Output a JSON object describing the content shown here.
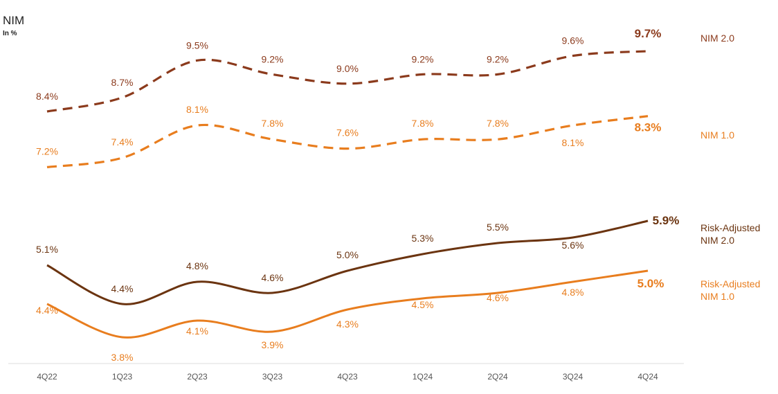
{
  "chart_data": {
    "type": "line",
    "title": "NIM",
    "subtitle": "In %",
    "categories": [
      "4Q22",
      "1Q23",
      "2Q23",
      "3Q23",
      "4Q23",
      "1Q24",
      "2Q24",
      "3Q24",
      "4Q24"
    ],
    "ylim": [
      3,
      10
    ],
    "grid": false,
    "legend_placement": "right",
    "series": [
      {
        "name": "NIM 2.0",
        "values": [
          8.4,
          8.7,
          9.5,
          9.2,
          9.0,
          9.2,
          9.2,
          9.6,
          9.7
        ],
        "color": "#8b3a1c",
        "style": "dashed"
      },
      {
        "name": "NIM 1.0",
        "values": [
          7.2,
          7.4,
          8.1,
          7.8,
          7.6,
          7.8,
          7.8,
          8.1,
          8.3
        ],
        "color": "#e87d1e",
        "style": "dashed"
      },
      {
        "name": "Risk-Adjusted NIM 2.0",
        "values": [
          5.1,
          4.4,
          4.8,
          4.6,
          5.0,
          5.3,
          5.5,
          5.6,
          5.9
        ],
        "color": "#6b3410",
        "style": "solid"
      },
      {
        "name": "Risk-Adjusted NIM 1.0",
        "values": [
          4.4,
          3.8,
          4.1,
          3.9,
          4.3,
          4.5,
          4.6,
          4.8,
          5.0
        ],
        "color": "#e87d1e",
        "style": "solid"
      }
    ],
    "data_labels": [
      [
        "8.4%",
        "8.7%",
        "9.5%",
        "9.2%",
        "9.0%",
        "9.2%",
        "9.2%",
        "9.6%",
        "9.7%"
      ],
      [
        "7.2%",
        "7.4%",
        "8.1%",
        "7.8%",
        "7.6%",
        "7.8%",
        "7.8%",
        "8.1%",
        "8.3%"
      ],
      [
        "5.1%",
        "4.4%",
        "4.8%",
        "4.6%",
        "5.0%",
        "5.3%",
        "5.5%",
        "5.6%",
        "5.9%"
      ],
      [
        "4.4%",
        "3.8%",
        "4.1%",
        "3.9%",
        "4.3%",
        "4.5%",
        "4.6%",
        "4.8%",
        "5.0%"
      ]
    ],
    "legend_lines": [
      [
        "NIM 2.0"
      ],
      [
        "NIM 1.0"
      ],
      [
        "Risk-Adjusted",
        "NIM 2.0"
      ],
      [
        "Risk-Adjusted",
        "NIM 1.0"
      ]
    ]
  }
}
